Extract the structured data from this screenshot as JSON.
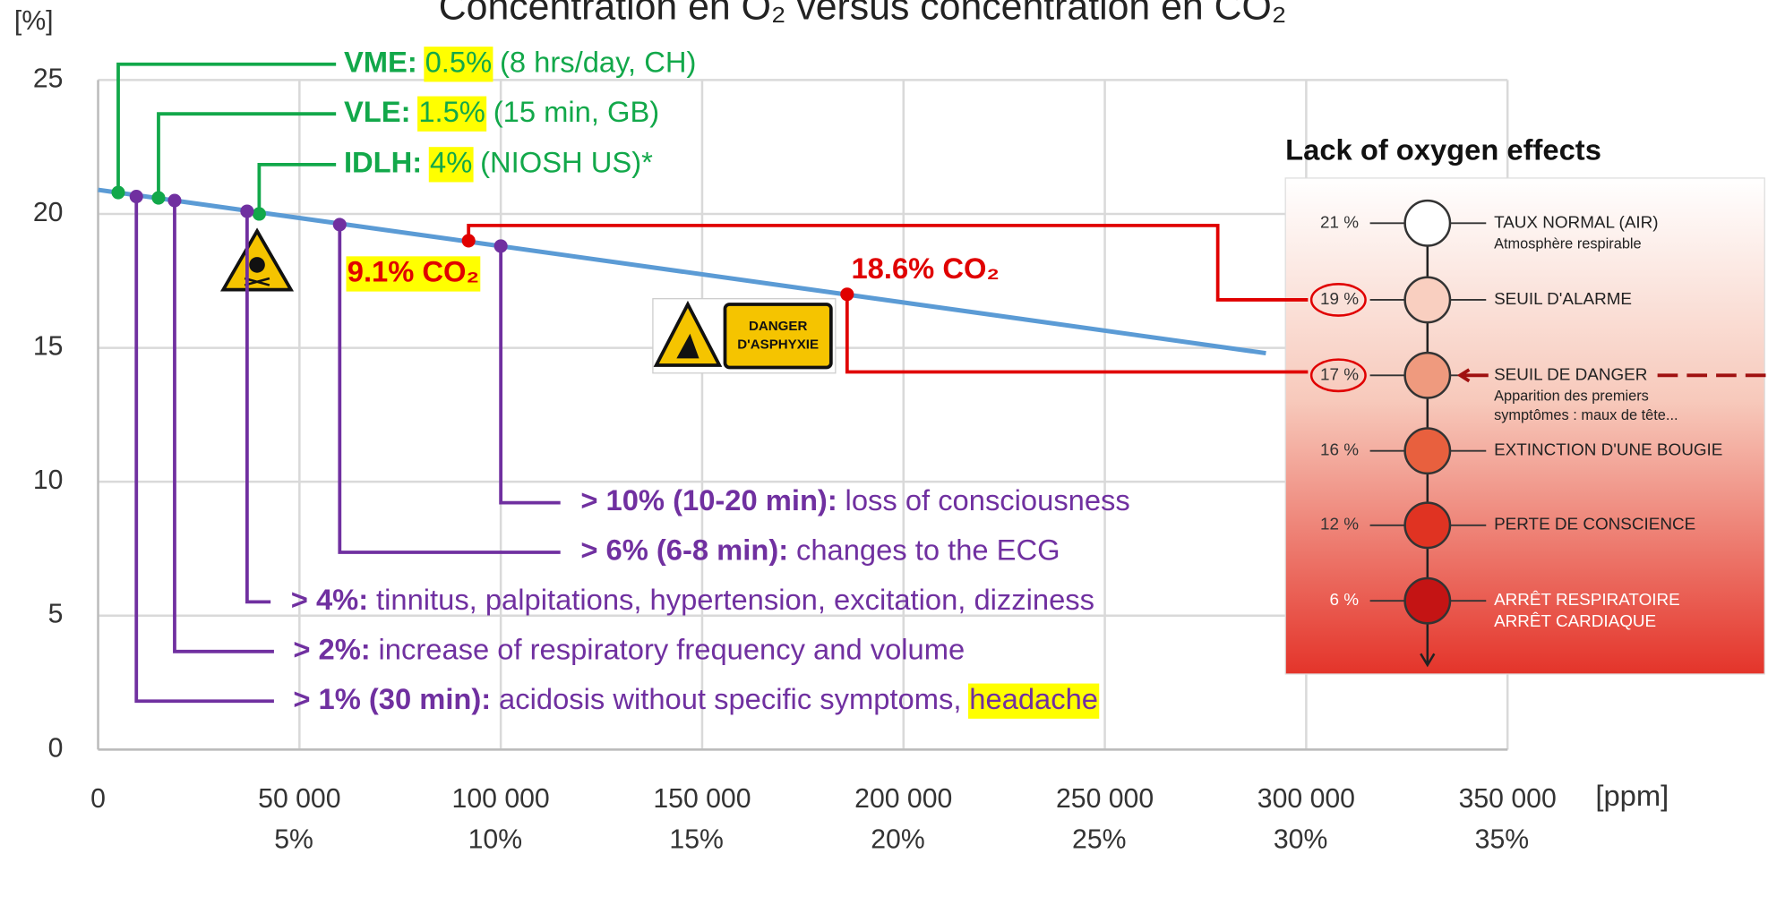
{
  "chart_data": {
    "type": "line",
    "title": "Concentration en O₂ versus concentration en CO₂",
    "y_unit": "[%]",
    "x_unit": "[ppm]",
    "xlim": [
      0,
      350000
    ],
    "ylim": [
      0,
      25
    ],
    "xticks": [
      0,
      {
        "value": 50000,
        "label": "50 000"
      },
      {
        "value": 100000,
        "label": "100 000"
      },
      {
        "value": 150000,
        "label": "150 000"
      },
      {
        "value": 200000,
        "label": "200 000"
      },
      {
        "value": 250000,
        "label": "250 000"
      },
      {
        "value": 300000,
        "label": "300 000"
      },
      {
        "value": 350000,
        "label": "350 000"
      }
    ],
    "xtick_sublabels": [
      "5%",
      "10%",
      "15%",
      "20%",
      "25%",
      "30%",
      "35%"
    ],
    "yticks": [
      0,
      5,
      10,
      15,
      20,
      25
    ],
    "grid": true,
    "series": [
      {
        "name": "O₂",
        "color": "#5b9bd5",
        "x": [
          0,
          290000
        ],
        "values": [
          20.9,
          14.8
        ]
      }
    ],
    "note_colors": {
      "green": "#12a84a",
      "purple": "#7030a0",
      "red": "#e00000",
      "highlight": "#ffff00"
    },
    "green_notes": [
      {
        "label": "VME:",
        "value": "0.5%",
        "note": "(8 hrs/day, CH)",
        "x": 5000,
        "y": 20.8
      },
      {
        "label": "VLE:",
        "value": "1.5%",
        "note": "(15 min, GB)",
        "x": 15000,
        "y": 20.6
      },
      {
        "label": "IDLH:",
        "value": "4%",
        "note": "(NIOSH US)*",
        "x": 40000,
        "y": 20.0
      }
    ],
    "purple_notes": [
      {
        "label": "> 10% (10-20 min):",
        "note": "loss of consciousness",
        "x": 100000,
        "y": 18.8
      },
      {
        "label": "> 6% (6-8 min):",
        "note": "changes to the ECG",
        "x": 60000,
        "y": 19.6
      },
      {
        "label": "> 4%:",
        "note": "tinnitus, palpitations, hypertension, excitation, dizziness",
        "x": 37000,
        "y": 20.1
      },
      {
        "label": "> 2%:",
        "note": "increase of respiratory frequency and volume",
        "x": 19000,
        "y": 20.5
      },
      {
        "label": "> 1% (30 min):",
        "note": "acidosis without specific symptoms,",
        "highlight": "headache",
        "x": 9500,
        "y": 20.65
      }
    ],
    "red_notes": [
      {
        "label": "9.1% CO₂",
        "x": 92000,
        "y": 19.0
      },
      {
        "label": "18.6% CO₂",
        "x": 186000,
        "y": 17.0
      }
    ],
    "sign": [
      "DANGER",
      "D'ASPHYXIE"
    ],
    "panel": {
      "title": "Lack of oxygen effects",
      "levels": [
        {
          "pct": "21 %",
          "label": [
            "TAUX NORMAL (AIR)"
          ],
          "sub": [
            "Atmosphère respirable"
          ],
          "color": "#ffffff"
        },
        {
          "pct": "19 %",
          "label": [
            "SEUIL D'ALARME"
          ],
          "sub": [],
          "color": "#f9cfc0"
        },
        {
          "pct": "17 %",
          "label": [
            "SEUIL DE DANGER"
          ],
          "sub": [
            "Apparition des premiers",
            "symptômes : maux de tête..."
          ],
          "color": "#ef9a7e"
        },
        {
          "pct": "16 %",
          "label": [
            "EXTINCTION D'UNE BOUGIE"
          ],
          "sub": [],
          "color": "#e8603e"
        },
        {
          "pct": "12 %",
          "label": [
            "PERTE DE CONSCIENCE"
          ],
          "sub": [],
          "color": "#e03322"
        },
        {
          "pct": "6 %",
          "label": [
            "ARRÊT RESPIRATOIRE",
            "ARRÊT CARDIAQUE"
          ],
          "sub": [],
          "color": "#c41414"
        }
      ]
    }
  }
}
